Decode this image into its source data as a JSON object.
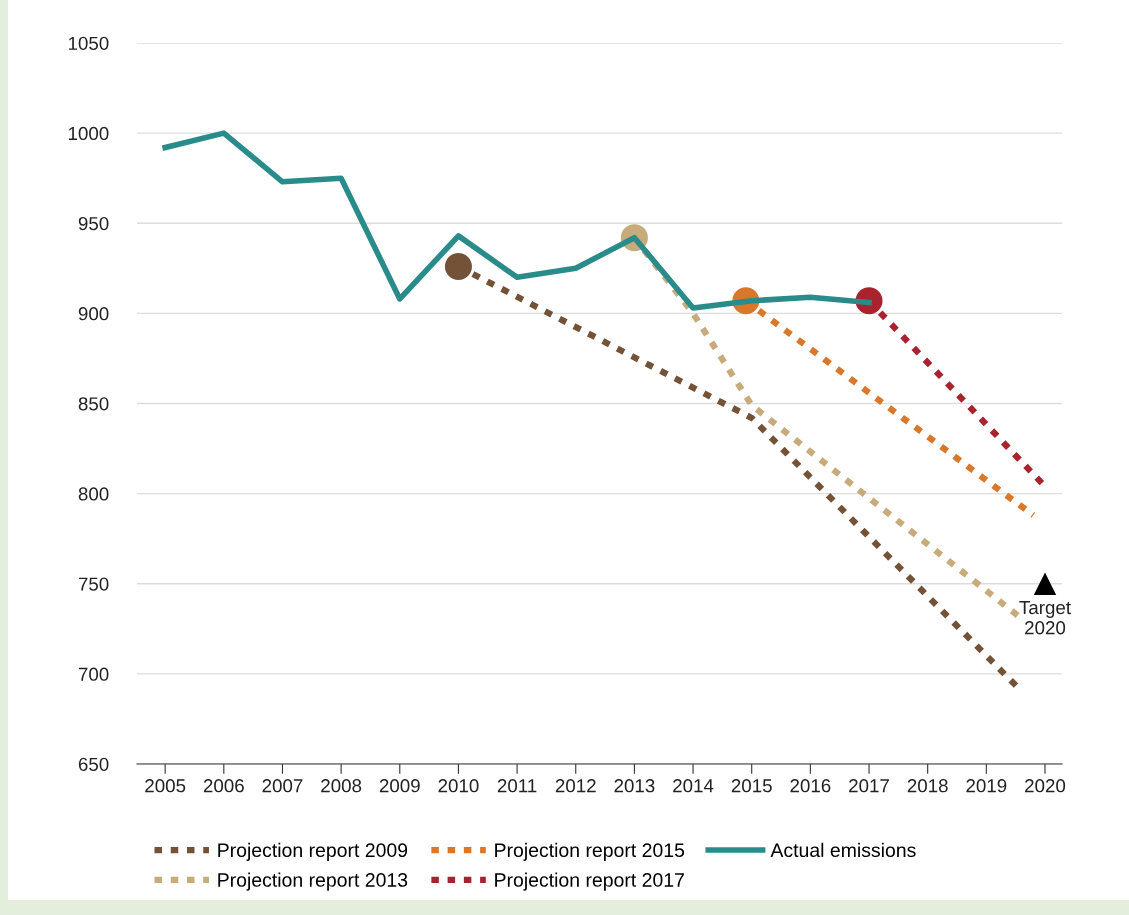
{
  "chart_data": {
    "type": "line",
    "xlim": [
      2004.52,
      2020.29
    ],
    "xticks": [
      2005,
      2006,
      2007,
      2008,
      2009,
      2010,
      2011,
      2012,
      2013,
      2014,
      2015,
      2016,
      2017,
      2018,
      2019,
      2020
    ],
    "ylim": [
      650,
      1050
    ],
    "yticks": [
      650,
      700,
      750,
      800,
      850,
      900,
      950,
      1000,
      1050
    ],
    "grid": "y",
    "legend": "bottom",
    "marker": "none",
    "series": [
      {
        "name": "Projection report 2009",
        "color": "#735238",
        "line_style": "dotted",
        "x": [
          2010,
          2015,
          2019.55
        ],
        "values": [
          926,
          842,
          692
        ]
      },
      {
        "name": "Projection report 2013",
        "color": "#c8ab7a",
        "line_style": "dotted",
        "x": [
          2013,
          2014,
          2015,
          2019.55
        ],
        "values": [
          942,
          900,
          849,
          732
        ]
      },
      {
        "name": "Projection report 2015",
        "color": "#d9782b",
        "line_style": "dotted",
        "x": [
          2014.9,
          2019.8
        ],
        "values": [
          907,
          788
        ]
      },
      {
        "name": "Projection report 2017",
        "color": "#a8232e",
        "line_style": "dotted",
        "x": [
          2017,
          2020
        ],
        "values": [
          907,
          804
        ]
      },
      {
        "name": "Actual emissions",
        "color": "#2a8c8a",
        "line_style": "solid",
        "x": [
          2005,
          2006,
          2007,
          2008,
          2009,
          2010,
          2011,
          2012,
          2013,
          2014,
          2015,
          2016,
          2017
        ],
        "values": [
          992,
          1000,
          973,
          975,
          908,
          943,
          920,
          925,
          942,
          903,
          907,
          909,
          906
        ]
      },
      {
        "type": "scatter",
        "marker": "circle",
        "x": [
          2010,
          2013,
          2014.9,
          2017
        ],
        "values": [
          926,
          942,
          907,
          907
        ],
        "colors": [
          "#735238",
          "#c8ab7a",
          "#d9782b",
          "#a8232e"
        ]
      },
      {
        "type": "scatter",
        "marker": "triangle",
        "x": [
          2020
        ],
        "values": [
          750
        ],
        "colors": [
          "#000000"
        ]
      }
    ],
    "annotations": [
      {
        "text": "Target\n2020",
        "x": 2020,
        "y": 750
      }
    ]
  }
}
